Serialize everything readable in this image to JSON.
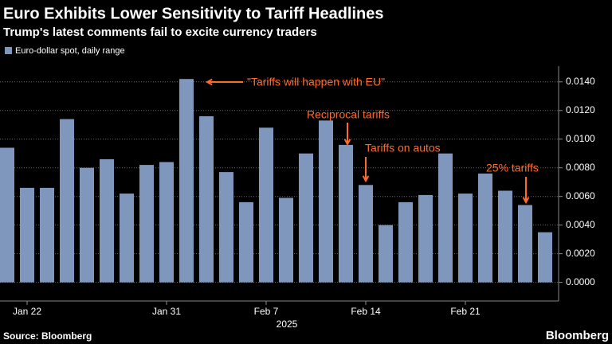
{
  "chart_data": {
    "type": "bar",
    "title": "Euro Exhibits Lower Sensitivity to Tariff Headlines",
    "subtitle": "Trump's latest comments fail to excite currency traders",
    "source": "Source: Bloomberg",
    "brand": "Bloomberg",
    "x_axis_label": "2025",
    "categories": [
      null,
      "Jan 22",
      null,
      null,
      null,
      null,
      null,
      null,
      "Jan 31",
      null,
      null,
      null,
      null,
      "Feb 7",
      null,
      null,
      null,
      null,
      "Feb 14",
      null,
      null,
      null,
      null,
      "Feb 21",
      null,
      null,
      null,
      null
    ],
    "series": [
      {
        "name": "Euro-dollar spot, daily range",
        "color": "#7f96bd",
        "values": [
          0.0094,
          0.0066,
          0.0066,
          0.0114,
          0.008,
          0.0086,
          0.0062,
          0.0082,
          0.0084,
          0.0142,
          0.0116,
          0.0077,
          0.0056,
          0.0108,
          0.0059,
          0.009,
          0.0113,
          0.0096,
          0.0068,
          0.004,
          0.0056,
          0.0061,
          0.009,
          0.0062,
          0.0076,
          0.0064,
          0.0054,
          0.0035
        ]
      }
    ],
    "ylim": [
      -0.0013,
      0.0151
    ],
    "yticks": [
      {
        "value": 0,
        "label": "0.0000"
      },
      {
        "value": 0.002,
        "label": "0.0020"
      },
      {
        "value": 0.004,
        "label": "0.0040"
      },
      {
        "value": 0.006,
        "label": "0.0060"
      },
      {
        "value": 0.008,
        "label": "0.0080"
      },
      {
        "value": 0.01,
        "label": "0.0100"
      },
      {
        "value": 0.012,
        "label": "0.0120"
      },
      {
        "value": 0.014,
        "label": "0.0140"
      }
    ],
    "grid": true,
    "annotations": [
      {
        "text": "\"Tariffs will happen with EU\"",
        "color": "#ff6a2b"
      },
      {
        "text": "Reciprocal tariffs",
        "color": "#ff6a2b"
      },
      {
        "text": "Tariffs on autos",
        "color": "#ff6a2b"
      },
      {
        "text": "25% tariffs",
        "color": "#ff6a2b"
      }
    ]
  }
}
